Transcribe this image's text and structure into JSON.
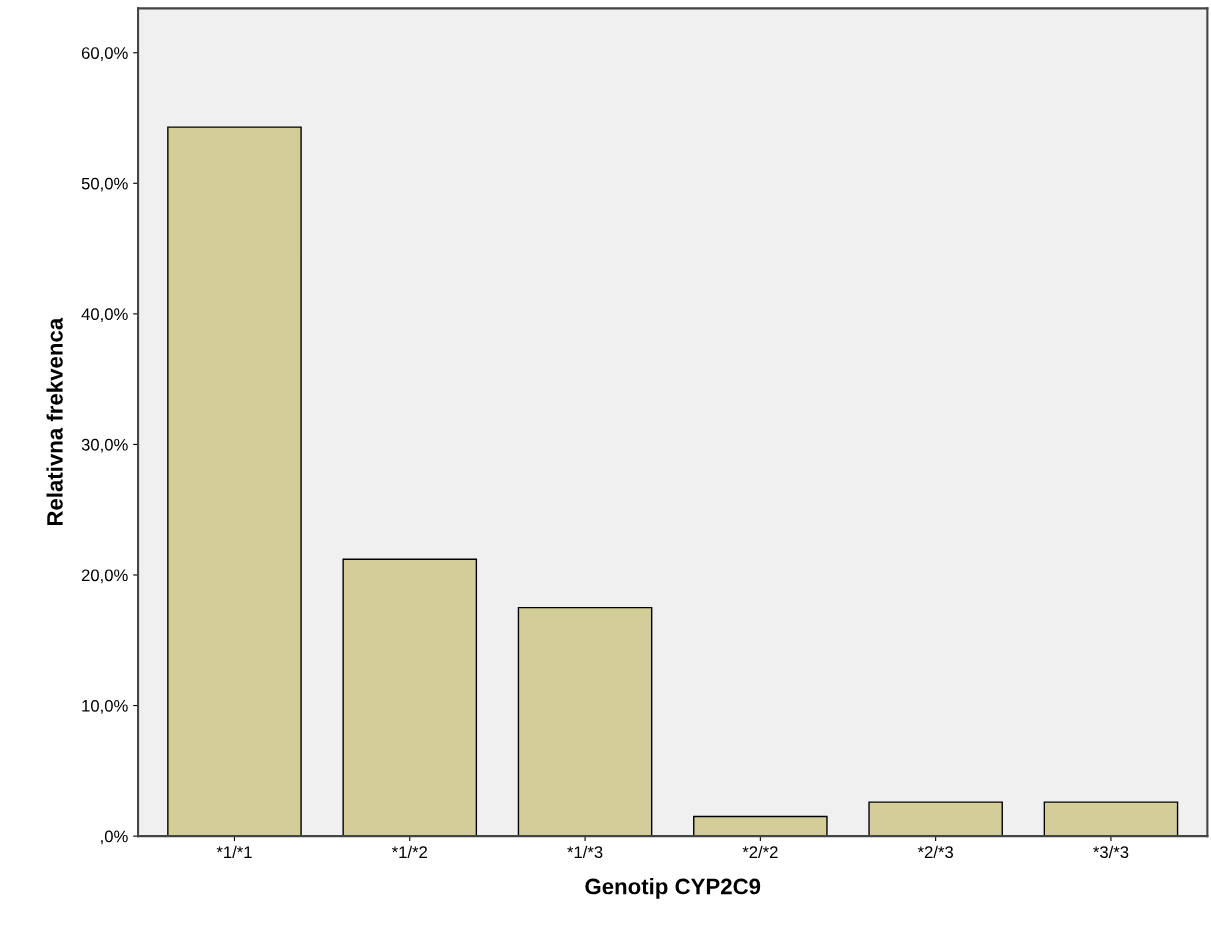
{
  "chart_data": {
    "type": "bar",
    "xlabel": "Genotip CYP2C9",
    "ylabel": "Relativna frekvenca",
    "categories": [
      "*1/*1",
      "*1/*2",
      "*1/*3",
      "*2/*2",
      "*2/*3",
      "*3/*3"
    ],
    "values": [
      54.3,
      21.2,
      17.5,
      1.5,
      2.6,
      2.6
    ],
    "color": "#d3ce97",
    "ylim": [
      0,
      63.4
    ],
    "yticks": [
      {
        "value": 0,
        "label": ",0%"
      },
      {
        "value": 10,
        "label": "10,0%"
      },
      {
        "value": 20,
        "label": "20,0%"
      },
      {
        "value": 30,
        "label": "30,0%"
      },
      {
        "value": 40,
        "label": "40,0%"
      },
      {
        "value": 50,
        "label": "50,0%"
      },
      {
        "value": 60,
        "label": "60,0%"
      }
    ],
    "grid": false,
    "legend": false
  }
}
